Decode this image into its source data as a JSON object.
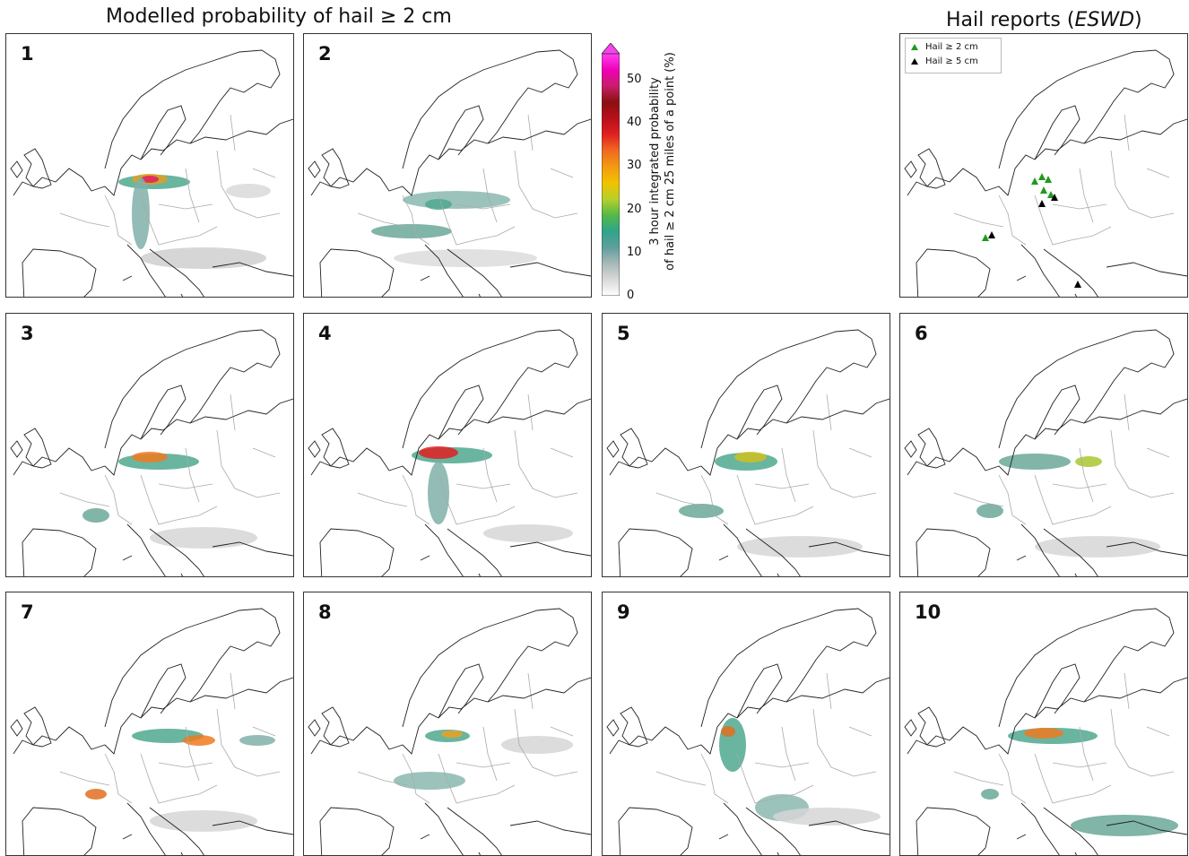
{
  "titles": {
    "model": "Modelled probability of hail ≥ 2 cm",
    "reports_prefix": "Hail reports (",
    "reports_source": "ESWD",
    "reports_suffix": ")"
  },
  "panels": [
    {
      "label": "1",
      "type": "model"
    },
    {
      "label": "2",
      "type": "model"
    },
    {
      "label": "",
      "type": "reports"
    },
    {
      "label": "3",
      "type": "model"
    },
    {
      "label": "4",
      "type": "model"
    },
    {
      "label": "5",
      "type": "model"
    },
    {
      "label": "6",
      "type": "model"
    },
    {
      "label": "7",
      "type": "model"
    },
    {
      "label": "8",
      "type": "model"
    },
    {
      "label": "9",
      "type": "model"
    },
    {
      "label": "10",
      "type": "model"
    }
  ],
  "colorbar": {
    "ticks": [
      "0",
      "10",
      "20",
      "30",
      "40",
      "50"
    ],
    "label_line1": "3 hour integrated probability",
    "label_line2": "of hail ≥ 2 cm 25 miles of a point (%)",
    "colors": [
      "#ffffff",
      "#d9d9d9",
      "#a8b9b9",
      "#5f9e9e",
      "#2fa58a",
      "#54b948",
      "#b8d02a",
      "#f2c200",
      "#f39a10",
      "#f06a20",
      "#e02020",
      "#b8101a",
      "#8a1010",
      "#c81e6a",
      "#f000b8",
      "#ff40f0"
    ]
  },
  "legend": {
    "items": [
      {
        "label": "Hail ≥ 2 cm",
        "color": "#1f9a1f"
      },
      {
        "label": "Hail ≥ 5 cm",
        "color": "#000000"
      }
    ]
  }
}
